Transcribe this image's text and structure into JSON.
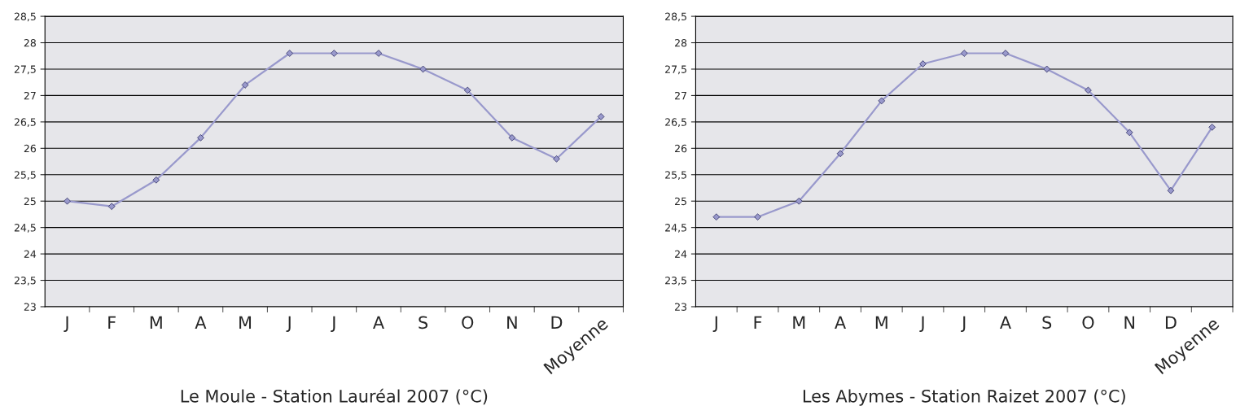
{
  "chart_data": [
    {
      "type": "line",
      "xlabel": "Le Moule - Station Lauréal 2007 (°C)",
      "categories": [
        "J",
        "F",
        "M",
        "A",
        "M",
        "J",
        "J",
        "A",
        "S",
        "O",
        "N",
        "D",
        "Moyenne"
      ],
      "series": [
        {
          "color": "#9999cc",
          "values": [
            25.0,
            24.9,
            25.4,
            26.2,
            27.2,
            27.8,
            27.8,
            27.8,
            27.5,
            27.1,
            26.2,
            25.8,
            26.6
          ]
        }
      ],
      "ylim": [
        23,
        28.5
      ],
      "yticks": [
        23,
        {
          "value": 23.5,
          "label": "23,5"
        },
        24,
        {
          "value": 24.5,
          "label": "24,5"
        },
        25,
        {
          "value": 25.5,
          "label": "25,5"
        },
        26,
        {
          "value": 26.5,
          "label": "26,5"
        },
        27,
        {
          "value": 27.5,
          "label": "27,5"
        },
        28,
        {
          "value": 28.5,
          "label": "28,5"
        }
      ],
      "grid": "y",
      "marker": "diamond",
      "line_style": "solid"
    },
    {
      "type": "line",
      "xlabel": "Les Abymes - Station Raizet 2007 (°C)",
      "categories": [
        "J",
        "F",
        "M",
        "A",
        "M",
        "J",
        "J",
        "A",
        "S",
        "O",
        "N",
        "D",
        "Moyenne"
      ],
      "series": [
        {
          "color": "#9999cc",
          "values": [
            24.7,
            24.7,
            25.0,
            25.9,
            26.9,
            27.6,
            27.8,
            27.8,
            27.5,
            27.1,
            26.3,
            25.2,
            26.4
          ]
        }
      ],
      "ylim": [
        23,
        28.5
      ],
      "yticks": [
        23,
        {
          "value": 23.5,
          "label": "23,5"
        },
        24,
        {
          "value": 24.5,
          "label": "24,5"
        },
        25,
        {
          "value": 25.5,
          "label": "25,5"
        },
        26,
        {
          "value": 26.5,
          "label": "26,5"
        },
        27,
        {
          "value": 27.5,
          "label": "27,5"
        },
        28,
        {
          "value": 28.5,
          "label": "28,5"
        }
      ],
      "grid": "y",
      "marker": "diamond",
      "line_style": "solid"
    }
  ]
}
